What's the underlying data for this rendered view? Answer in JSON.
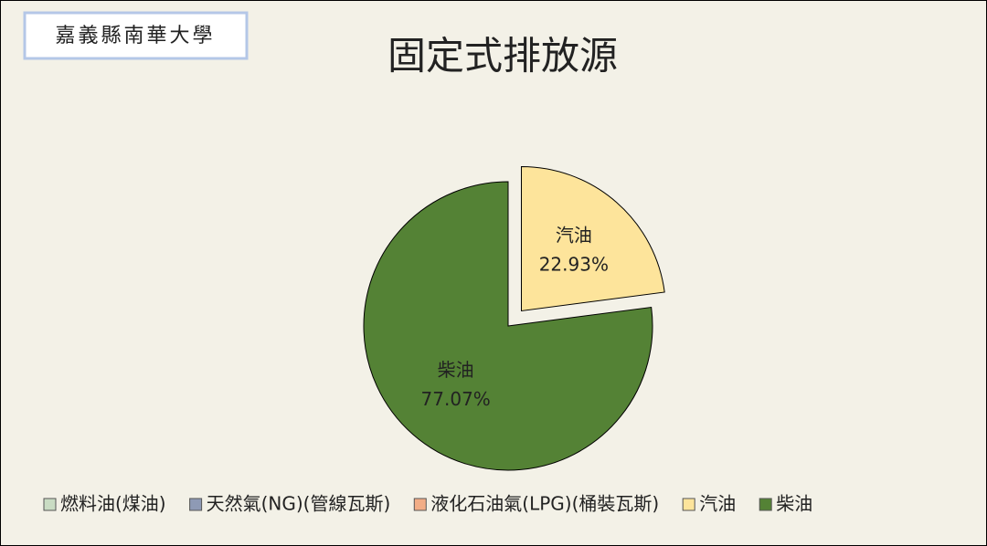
{
  "chart_data": {
    "type": "pie",
    "title": "固定式排放源",
    "annotation": "嘉義縣南華大學",
    "categories": [
      "燃料油(煤油)",
      "天然氣(NG)(管線瓦斯)",
      "液化石油氣(LPG)(桶裝瓦斯)",
      "汽油",
      "柴油"
    ],
    "values": [
      0,
      0,
      0,
      22.93,
      77.07
    ],
    "value_labels": [
      null,
      null,
      null,
      "22.93%",
      "77.07%"
    ],
    "colors": [
      "#c9dcc3",
      "#8e9ab5",
      "#f2ad86",
      "#fde49b",
      "#548235"
    ],
    "exploded": [
      false,
      false,
      false,
      true,
      false
    ],
    "legend": "bottom"
  }
}
